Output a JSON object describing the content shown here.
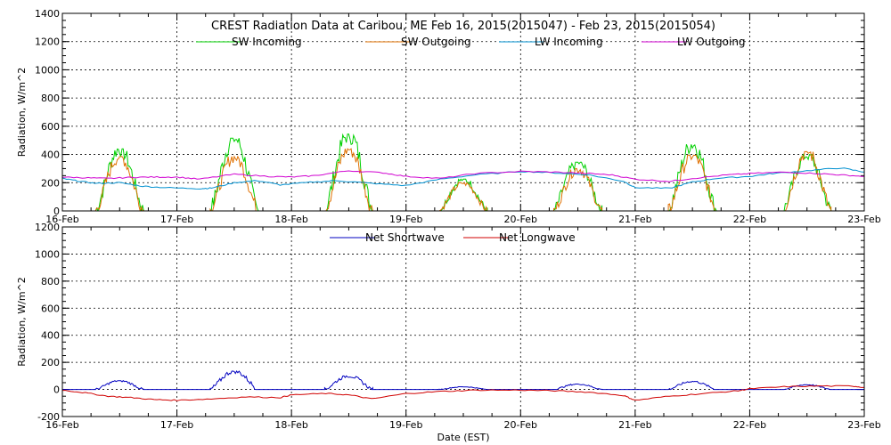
{
  "chart_data": [
    {
      "type": "line",
      "title": "CREST Radiation Data at Caribou, ME   Feb 16, 2015(2015047) - Feb 23, 2015(2015054)",
      "ylabel": "Radiation, W/m^2",
      "xlabel": "",
      "xlim": [
        0,
        7
      ],
      "ylim": [
        0,
        1400
      ],
      "yticks": [
        0,
        200,
        400,
        600,
        800,
        1000,
        1200,
        1400
      ],
      "x_tick_labels": [
        "16-Feb",
        "17-Feb",
        "18-Feb",
        "19-Feb",
        "20-Feb",
        "21-Feb",
        "22-Feb",
        "23-Feb"
      ],
      "grid": true,
      "legend": "top",
      "series": [
        {
          "name": "SW Incoming",
          "color": "#00d000",
          "kind": "sw",
          "peaks": [
            440,
            515,
            545,
            225,
            345,
            475,
            400
          ]
        },
        {
          "name": "SW Outgoing",
          "color": "#e07000",
          "kind": "sw",
          "peaks": [
            385,
            385,
            440,
            200,
            300,
            395,
            420
          ]
        },
        {
          "name": "LW Incoming",
          "color": "#0090d0",
          "kind": "lw",
          "x": [
            0,
            0.15,
            0.3,
            0.5,
            0.7,
            0.9,
            1.2,
            1.3,
            1.5,
            1.7,
            1.9,
            2.2,
            2.4,
            2.7,
            3.0,
            3.3,
            3.6,
            4.0,
            4.3,
            4.6,
            4.9,
            5.0,
            5.3,
            5.5,
            5.7,
            6.0,
            6.2,
            6.5,
            6.8,
            7.0
          ],
          "y": [
            230,
            210,
            195,
            200,
            175,
            165,
            158,
            162,
            200,
            215,
            185,
            205,
            215,
            195,
            180,
            225,
            255,
            280,
            270,
            255,
            210,
            165,
            160,
            205,
            230,
            245,
            265,
            285,
            305,
            275
          ]
        },
        {
          "name": "LW Outgoing",
          "color": "#d000d0",
          "kind": "lw",
          "x": [
            0,
            0.2,
            0.4,
            0.6,
            0.8,
            1.0,
            1.2,
            1.5,
            1.8,
            2.0,
            2.2,
            2.5,
            2.8,
            3.0,
            3.3,
            3.6,
            4.0,
            4.3,
            4.6,
            4.8,
            5.0,
            5.3,
            5.5,
            5.8,
            6.0,
            6.3,
            6.6,
            6.8,
            7.0
          ],
          "y": [
            240,
            235,
            230,
            238,
            240,
            240,
            225,
            260,
            245,
            240,
            250,
            285,
            270,
            245,
            230,
            265,
            280,
            275,
            265,
            255,
            225,
            210,
            230,
            255,
            265,
            275,
            265,
            255,
            245
          ]
        }
      ]
    },
    {
      "type": "line",
      "title": "",
      "ylabel": "Radiation, W/m^2",
      "xlabel": "Date (EST)",
      "xlim": [
        0,
        7
      ],
      "ylim": [
        -200,
        1200
      ],
      "yticks": [
        -200,
        0,
        200,
        400,
        600,
        800,
        1000,
        1200
      ],
      "x_tick_labels": [
        "16-Feb",
        "17-Feb",
        "18-Feb",
        "19-Feb",
        "20-Feb",
        "21-Feb",
        "22-Feb",
        "23-Feb"
      ],
      "grid": true,
      "legend": "top",
      "series": [
        {
          "name": "Net Shortwave",
          "color": "#0000c0",
          "kind": "sw",
          "peaks": [
            65,
            135,
            100,
            20,
            40,
            60,
            35
          ]
        },
        {
          "name": "Net Longwave",
          "color": "#d00000",
          "kind": "lw",
          "x": [
            0,
            0.2,
            0.4,
            0.6,
            0.8,
            1.0,
            1.3,
            1.6,
            1.9,
            2.0,
            2.3,
            2.5,
            2.7,
            3.0,
            3.3,
            3.6,
            4.0,
            4.3,
            4.6,
            4.9,
            5.0,
            5.3,
            5.6,
            5.9,
            6.0,
            6.3,
            6.6,
            6.9,
            7.0
          ],
          "y": [
            -5,
            -25,
            -50,
            -60,
            -75,
            -80,
            -70,
            -55,
            -60,
            -40,
            -30,
            -40,
            -70,
            -30,
            -15,
            -5,
            -5,
            -10,
            -20,
            -45,
            -80,
            -50,
            -30,
            -10,
            5,
            20,
            25,
            25,
            15
          ]
        }
      ]
    }
  ]
}
